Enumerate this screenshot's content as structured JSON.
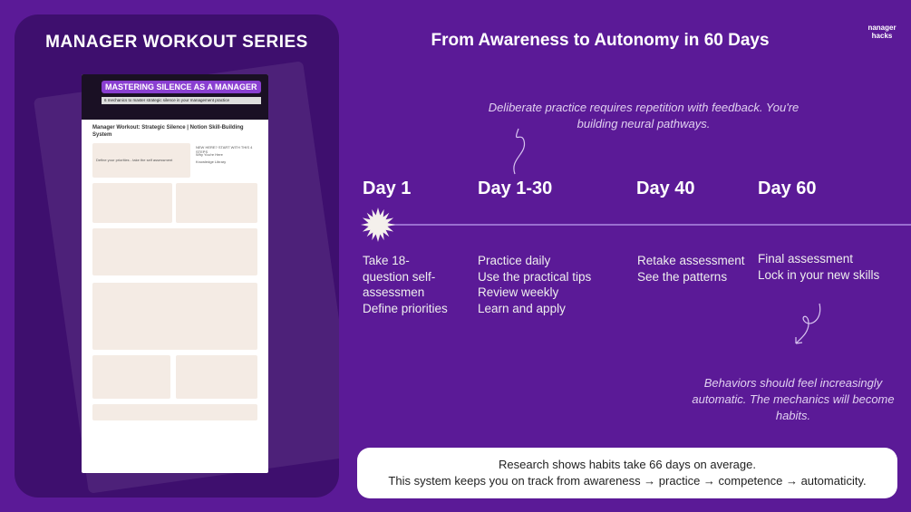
{
  "left_panel": {
    "title": "MANAGER WORKOUT SERIES",
    "screenshot": {
      "banner_title": "MASTERING SILENCE AS A MANAGER",
      "banner_subtitle": "6 mechanics to master strategic silence in your management practice",
      "page_title": "Manager Workout: Strategic Silence | Notion Skill-Building System",
      "links": [
        "NEW HERE? START WITH THIS 4 STEPS",
        "Why You're Here",
        "Knowledge Library"
      ],
      "step": "Define your priorities - take the self assessment"
    }
  },
  "header": {
    "title": "From Awareness to Autonomy in 60 Days"
  },
  "logo": {
    "text": "nanager hacks"
  },
  "quote_top": "Deliberate practice requires repetition with feedback. You're building neural pathways.",
  "quote_bottom": "Behaviors should feel increasingly automatic. The mechanics will become habits.",
  "timeline": [
    {
      "day": "Day 1",
      "items": [
        "Take 18-",
        "question self-",
        "assessmen",
        "Define priorities"
      ]
    },
    {
      "day": "Day 1-30",
      "items": [
        "Practice daily",
        "Use the practical tips",
        "Review weekly",
        "Learn and apply"
      ]
    },
    {
      "day": "Day 40",
      "items": [
        "Retake assessment",
        "See the patterns"
      ]
    },
    {
      "day": "Day 60",
      "items": [
        "Final assessment",
        "Lock in your new skills"
      ]
    }
  ],
  "footer": {
    "line1": "Research shows habits take 66 days on average.",
    "line2": "This system keeps you on track from awareness → practice → competence → automaticity."
  },
  "colors": {
    "background": "#5b1a97",
    "panel": "#3e0f6e",
    "accent": "#8a3fd1"
  }
}
